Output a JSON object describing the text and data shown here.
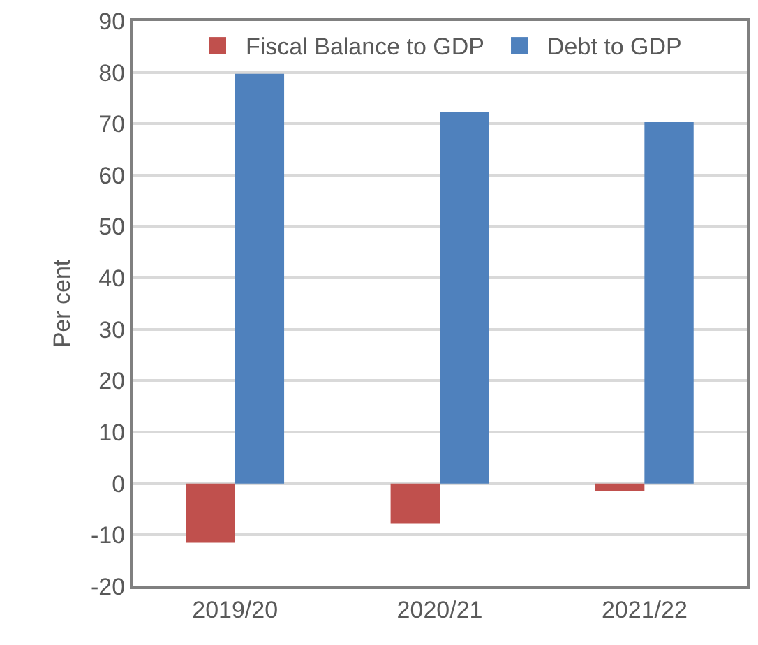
{
  "chart_data": {
    "type": "bar",
    "ylabel": "Per cent",
    "categories": [
      "2019/20",
      "2020/21",
      "2021/22"
    ],
    "series": [
      {
        "name": "Fiscal Balance to GDP",
        "color": "#c0504d",
        "values": [
          -11.5,
          -7.7,
          -1.4
        ]
      },
      {
        "name": "Debt to GDP",
        "color": "#4f81bd",
        "values": [
          79.7,
          72.3,
          70.3
        ]
      }
    ],
    "ylim": [
      -20,
      90
    ],
    "yticks": [
      -20,
      -10,
      0,
      10,
      20,
      30,
      40,
      50,
      60,
      70,
      80,
      90
    ],
    "grid": "y",
    "legend": "top"
  }
}
